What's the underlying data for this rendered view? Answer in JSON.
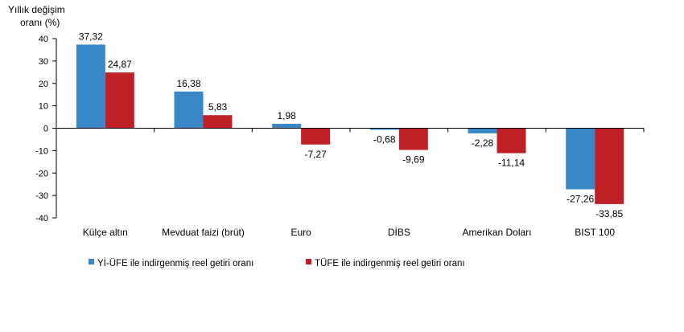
{
  "chart_data": {
    "type": "bar",
    "ylabel_line1": "Yıllık değişim",
    "ylabel_line2": "oranı (%)",
    "ylim": [
      -40,
      40
    ],
    "yticks": [
      40,
      30,
      20,
      10,
      0,
      -10,
      -20,
      -30,
      -40
    ],
    "grid": false,
    "legend_position": "bottom",
    "categories": [
      "Külçe altın",
      "Mevduat faizi (brüt)",
      "Euro",
      "DİBS",
      "Amerikan Doları",
      "BIST 100"
    ],
    "series": [
      {
        "name": "Yİ-ÜFE ile indirgenmiş reel getiri oranı",
        "color": "#3a87c8",
        "values": [
          37.32,
          16.38,
          1.98,
          -0.68,
          -2.28,
          -27.26
        ],
        "labels": [
          "37,32",
          "16,38",
          "1,98",
          "-0,68",
          "-2,28",
          "-27,26"
        ]
      },
      {
        "name": "TÜFE ile indirgenmiş reel getiri oranı",
        "color": "#be2026",
        "values": [
          24.87,
          5.83,
          -7.27,
          -9.69,
          -11.14,
          -33.85
        ],
        "labels": [
          "24,87",
          "5,83",
          "-7,27",
          "-9,69",
          "-11,14",
          "-33,85"
        ]
      }
    ]
  }
}
